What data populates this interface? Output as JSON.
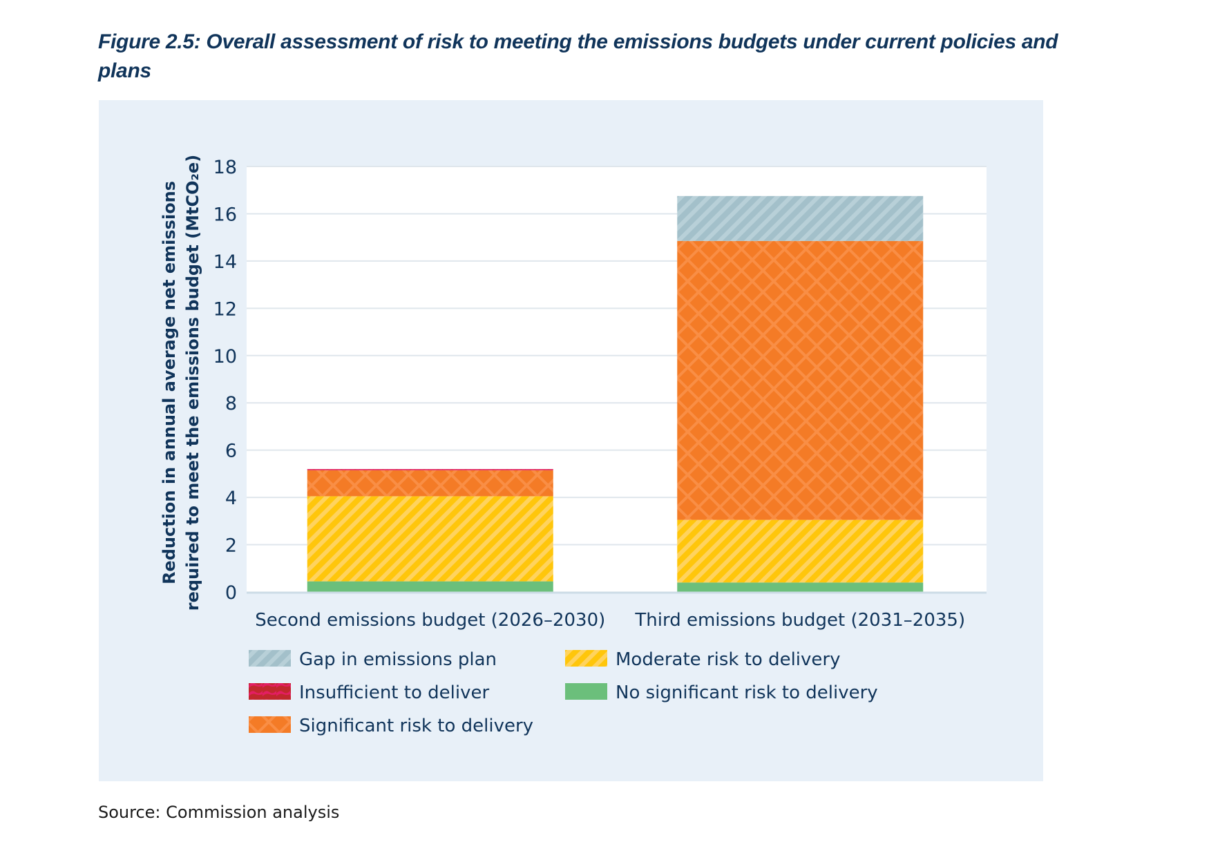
{
  "title": "Figure 2.5: Overall assessment of risk to meeting the emissions budgets under current policies and plans",
  "source": "Source: Commission analysis",
  "chart_data": {
    "type": "bar",
    "stacked": true,
    "title": "Figure 2.5: Overall assessment of risk to meeting the emissions budgets under current policies and plans",
    "xlabel": "",
    "ylabel_lines": [
      "Reduction in annual average net emissions",
      "required to meet the emissions budget (MtCO₂e)"
    ],
    "ylabel": "Reduction in annual average net emissions required to meet the emissions budget (MtCO₂e)",
    "ylim": [
      0,
      18
    ],
    "yticks": [
      0,
      2,
      4,
      6,
      8,
      10,
      12,
      14,
      16,
      18
    ],
    "grid": true,
    "legend_position": "bottom",
    "categories": [
      "Second emissions budget (2026–2030)",
      "Third emissions budget (2031–2035)"
    ],
    "series": [
      {
        "name": "No significant risk to delivery",
        "color": "#6bbf7b",
        "pattern": "solid",
        "values": [
          0.45,
          0.4
        ]
      },
      {
        "name": "Moderate risk to delivery",
        "color": "#ffc60b",
        "pattern": "stripes",
        "values": [
          3.6,
          2.65
        ]
      },
      {
        "name": "Significant risk to delivery",
        "color": "#f47b26",
        "pattern": "crosshatch",
        "values": [
          1.1,
          11.8
        ]
      },
      {
        "name": "Insufficient to deliver",
        "color": "#d9224f",
        "pattern": "waves",
        "values": [
          0.05,
          0.0
        ]
      },
      {
        "name": "Gap in emissions plan",
        "color": "#a3c0ca",
        "pattern": "stripes",
        "values": [
          0.0,
          1.9
        ]
      }
    ],
    "legend_order": [
      "Gap in emissions plan",
      "Insufficient to deliver",
      "Significant risk to delivery",
      "Moderate risk to delivery",
      "No significant risk to delivery"
    ]
  }
}
